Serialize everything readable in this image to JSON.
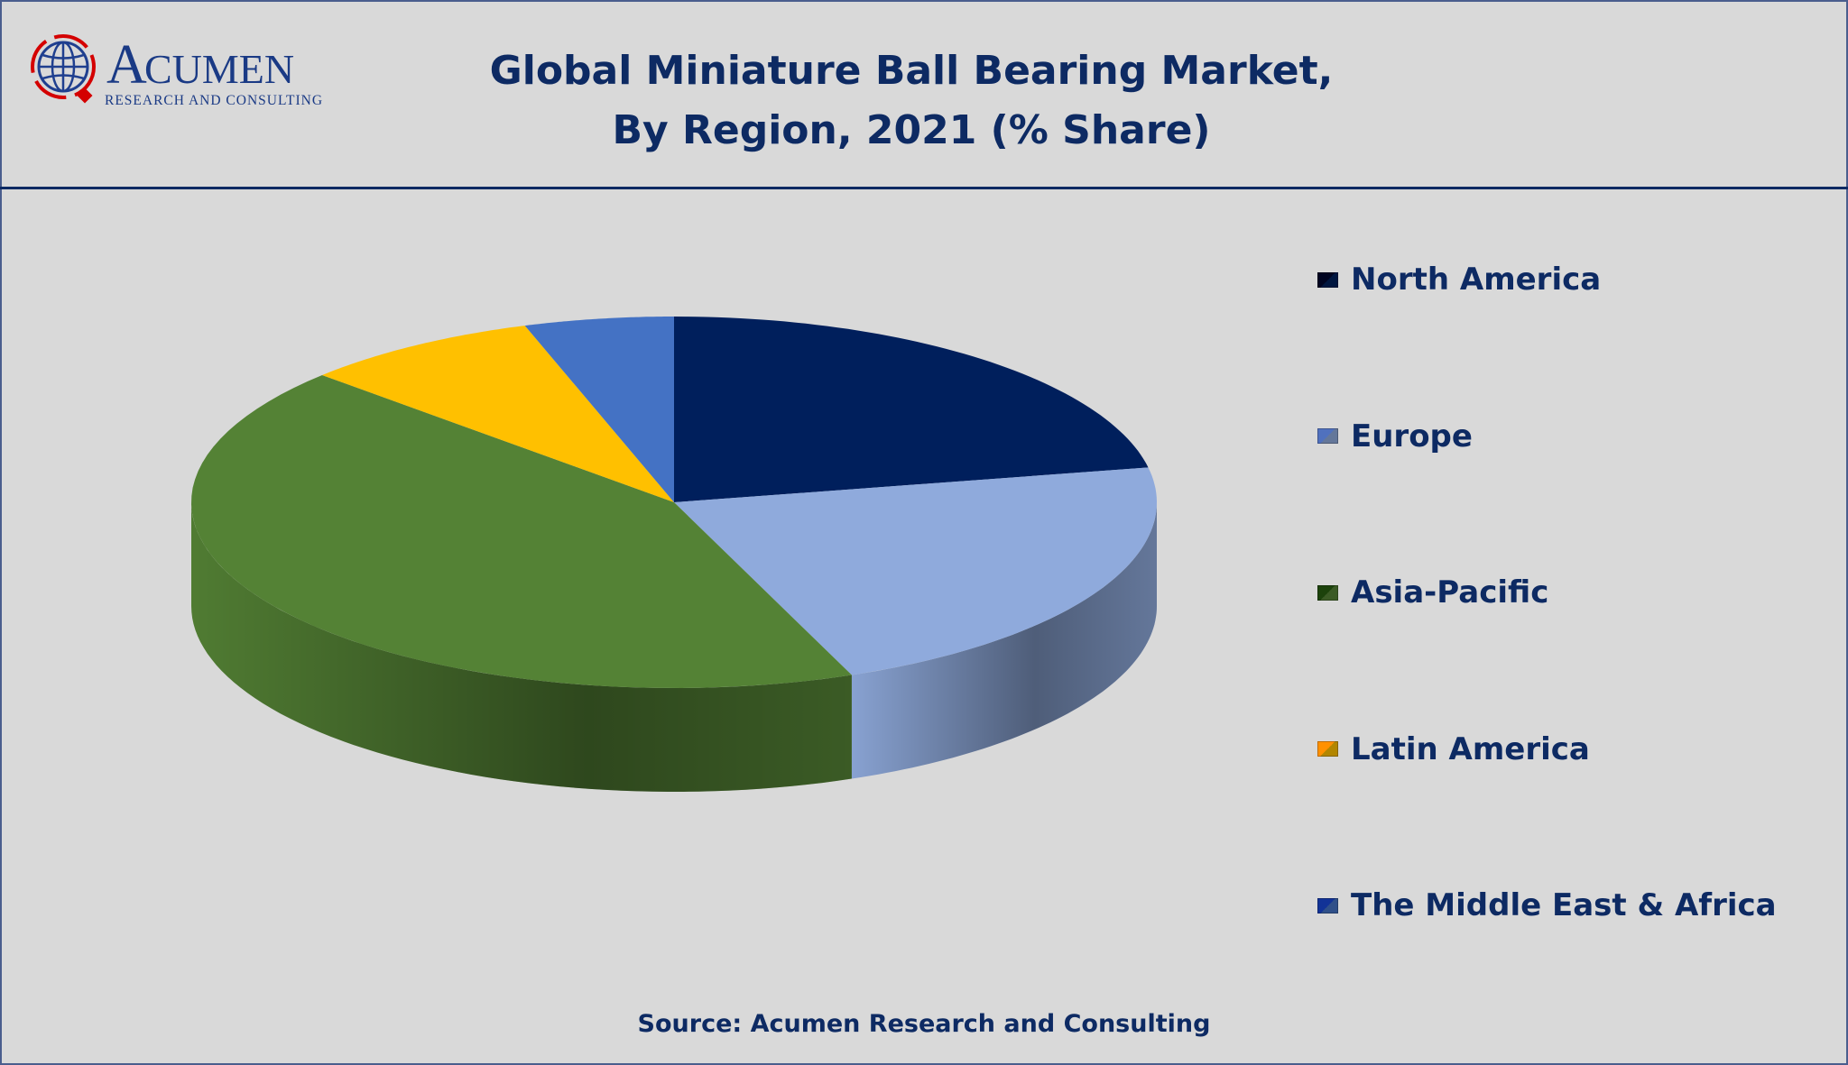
{
  "logo": {
    "name": "ACUMEN",
    "tagline": "RESEARCH AND CONSULTING"
  },
  "chart_data": {
    "type": "pie",
    "title": "Global Miniature Ball Bearing Market, By Region, 2021 (% Share)",
    "title_lines": [
      "Global Miniature Ball Bearing Market,",
      "By Region, 2021 (% Share)"
    ],
    "categories": [
      "North America",
      "Europe",
      "Asia-Pacific",
      "Latin America",
      "The Middle East & Africa"
    ],
    "values": [
      22,
      22,
      43,
      8,
      5
    ],
    "unit": "% share (estimated)",
    "colors": [
      "#001f5c",
      "#8faadc",
      "#548235",
      "#ffc000",
      "#4472c4"
    ],
    "legend_position": "right",
    "style": "3d"
  },
  "source": "Source: Acumen Research and Consulting"
}
